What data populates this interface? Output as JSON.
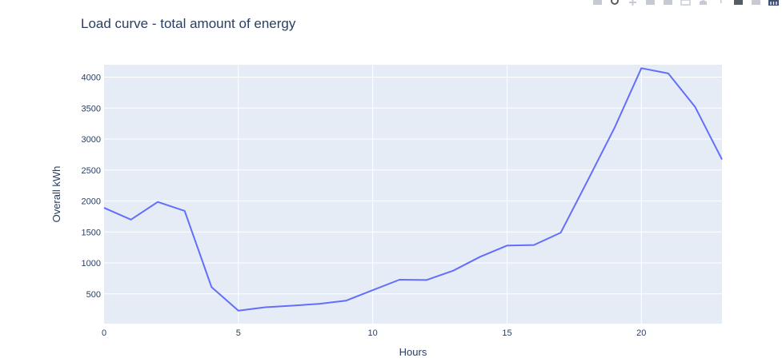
{
  "chart_data": {
    "type": "line",
    "title": "Load curve - total amount of energy",
    "xlabel": "Hours",
    "ylabel": "Overall kWh",
    "xlim": [
      0,
      23
    ],
    "ylim": [
      20,
      4200
    ],
    "x_ticks": [
      0,
      5,
      10,
      15,
      20
    ],
    "y_ticks": [
      500,
      1000,
      1500,
      2000,
      2500,
      3000,
      3500,
      4000
    ],
    "grid": true,
    "legend": "none",
    "colors": {
      "line": "#636efa",
      "plot_bg": "#e5ecf6",
      "grid": "#ffffff",
      "text": "#2a3f5f"
    },
    "series": [
      {
        "x": [
          0,
          1,
          2,
          3,
          4,
          5,
          6,
          7,
          8,
          9,
          10,
          11,
          12,
          13,
          14,
          15,
          16,
          17,
          18,
          19,
          20,
          21,
          22,
          23
        ],
        "y": [
          1890,
          1700,
          1985,
          1840,
          610,
          230,
          285,
          310,
          340,
          390,
          560,
          730,
          725,
          875,
          1100,
          1280,
          1290,
          1490,
          2330,
          3180,
          4145,
          4060,
          3520,
          2670
        ]
      }
    ]
  },
  "modebar": {
    "icons": [
      "camera-icon",
      "zoom-icon",
      "pan-icon",
      "zoom-in-icon",
      "zoom-out-icon",
      "autoscale-icon",
      "home-icon",
      "spike-lines-icon",
      "hover-closest-icon",
      "hover-compare-icon",
      "plotly-logo-icon"
    ]
  }
}
